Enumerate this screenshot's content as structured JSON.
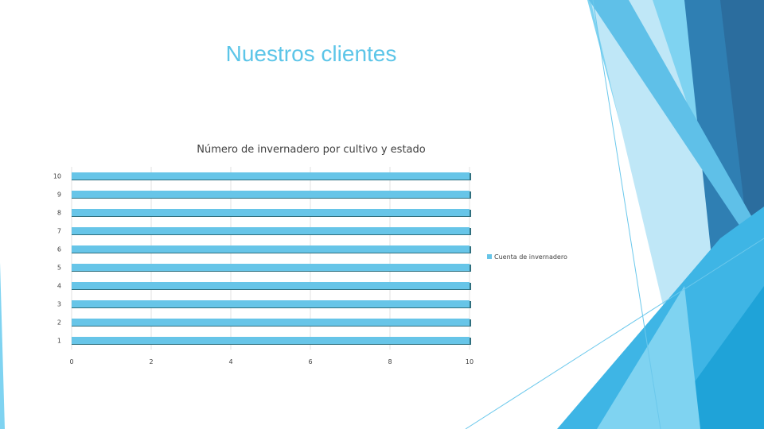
{
  "slide": {
    "title": "Nuestros clientes"
  },
  "theme": {
    "accent_light": "#7fd3f1",
    "accent_mid": "#3eb5e5",
    "accent_dark": "#2b6d9e",
    "bar_fill": "#67c5e8",
    "bar_edge": "#2f6f7e",
    "title_color": "#5cc5e8"
  },
  "chart_data": {
    "type": "bar",
    "orientation": "horizontal",
    "title": "Número de invernadero por cultivo y estado",
    "categories": [
      "1",
      "2",
      "3",
      "4",
      "5",
      "6",
      "7",
      "8",
      "9",
      "10"
    ],
    "series": [
      {
        "name": "Cuenta de invernadero",
        "values": [
          10,
          10,
          10,
          10,
          10,
          10,
          10,
          10,
          10,
          10
        ]
      }
    ],
    "xlim": [
      0,
      10
    ],
    "x_ticks": [
      "0",
      "2",
      "4",
      "6",
      "8",
      "10"
    ],
    "grid": true,
    "legend_position": "right"
  }
}
